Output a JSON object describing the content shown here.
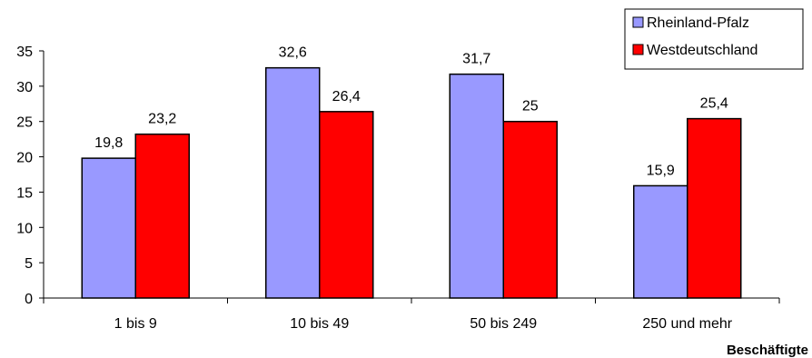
{
  "chart_data": {
    "type": "bar",
    "categories": [
      "1 bis 9",
      "10 bis 49",
      "50 bis 249",
      "250 und mehr"
    ],
    "series": [
      {
        "name": "Rheinland-Pfalz",
        "values": [
          19.8,
          32.6,
          31.7,
          15.9
        ],
        "labels": [
          "19,8",
          "32,6",
          "31,7",
          "15,9"
        ],
        "color": "#9999ff"
      },
      {
        "name": "Westdeutschland",
        "values": [
          23.2,
          26.4,
          25,
          25.4
        ],
        "labels": [
          "23,2",
          "26,4",
          "25",
          "25,4"
        ],
        "color": "#ff0000"
      }
    ],
    "xlabel": "Beschäftigte",
    "ylabel": "",
    "ylim": [
      0,
      35
    ],
    "yticks": [
      0,
      5,
      10,
      15,
      20,
      25,
      30,
      35
    ],
    "grid": false,
    "legend_position": "top-right"
  }
}
